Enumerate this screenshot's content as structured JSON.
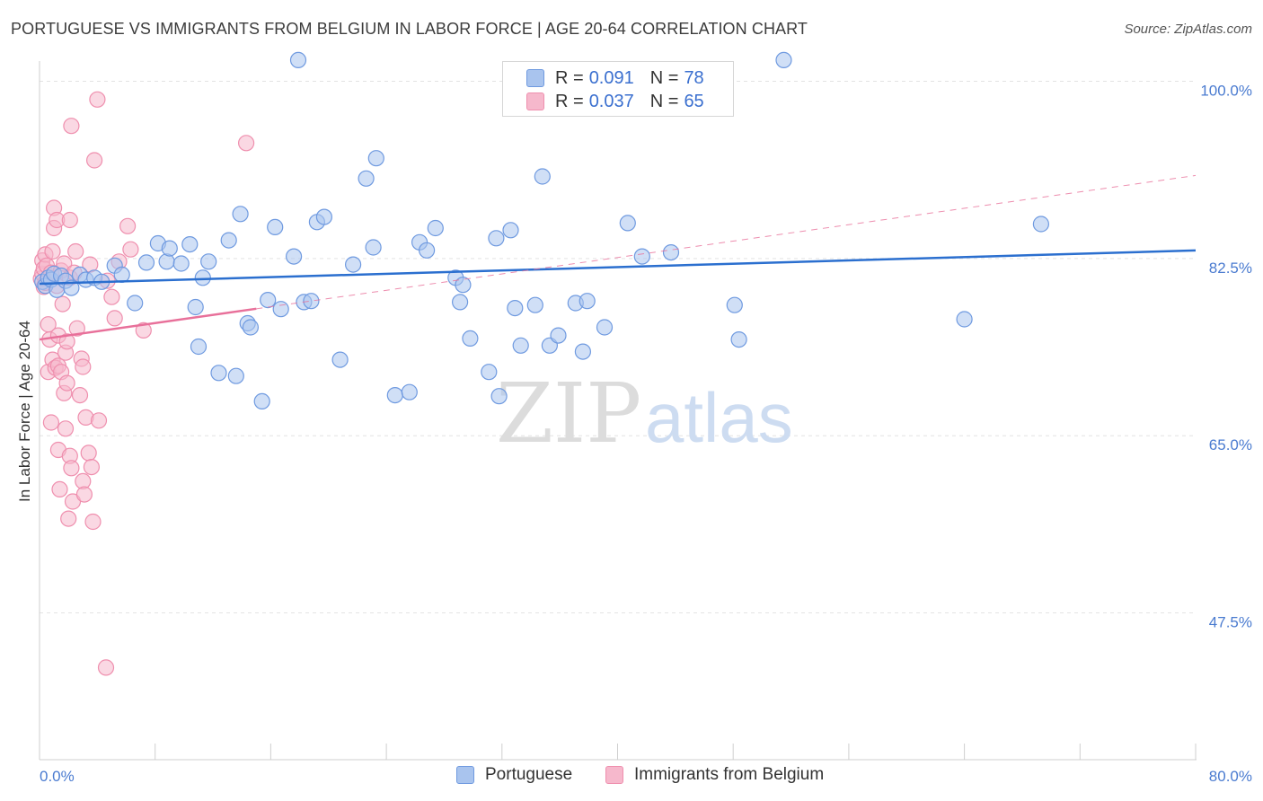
{
  "header": {
    "title": "PORTUGUESE VS IMMIGRANTS FROM BELGIUM IN LABOR FORCE | AGE 20-64 CORRELATION CHART",
    "source": "Source: ZipAtlas.com"
  },
  "watermark": {
    "zip": "ZIP",
    "atlas": "atlas"
  },
  "colors": {
    "blue_fill": "#a9c4ee",
    "blue_stroke": "#6f9ae0",
    "blue_line": "#2b6fcf",
    "pink_fill": "#f6b8cc",
    "pink_stroke": "#ef8fae",
    "pink_line": "#e8709a",
    "tick_label": "#4a7bd0",
    "grid": "#e3e3e3"
  },
  "legend": {
    "series1": {
      "r_label": "R =",
      "r_value": "0.091",
      "n_label": "N =",
      "n_value": "78"
    },
    "series2": {
      "r_label": "R =",
      "r_value": "0.037",
      "n_label": "N =",
      "n_value": "65"
    }
  },
  "chart_data": {
    "type": "scatter",
    "title": "PORTUGUESE VS IMMIGRANTS FROM BELGIUM IN LABOR FORCE | AGE 20-64 CORRELATION CHART",
    "xlabel": "",
    "ylabel": "In Labor Force | Age 20-64",
    "xlim": [
      0,
      80
    ],
    "ylim": [
      33,
      102
    ],
    "x_tick_labels": [
      "0.0%",
      "80.0%"
    ],
    "y_ticks": [
      {
        "value": 100.0,
        "label": "100.0%"
      },
      {
        "value": 82.5,
        "label": "82.5%"
      },
      {
        "value": 65.0,
        "label": "65.0%"
      },
      {
        "value": 47.5,
        "label": "47.5%"
      }
    ],
    "grid": true,
    "legend_position": "top-center",
    "series": [
      {
        "name": "Portuguese",
        "r": 0.091,
        "n": 78,
        "trend": {
          "x": [
            0,
            80
          ],
          "y": [
            80.0,
            83.3
          ]
        },
        "points": [
          [
            0.2,
            80.2
          ],
          [
            0.4,
            79.8
          ],
          [
            0.6,
            80.6
          ],
          [
            0.8,
            80.4
          ],
          [
            1.0,
            81.0
          ],
          [
            1.2,
            79.4
          ],
          [
            1.5,
            80.8
          ],
          [
            1.8,
            80.3
          ],
          [
            2.2,
            79.6
          ],
          [
            2.8,
            80.9
          ],
          [
            3.2,
            80.4
          ],
          [
            3.8,
            80.6
          ],
          [
            4.3,
            80.2
          ],
          [
            5.2,
            81.8
          ],
          [
            5.7,
            80.9
          ],
          [
            6.6,
            78.1
          ],
          [
            7.4,
            82.1
          ],
          [
            8.2,
            84.0
          ],
          [
            8.8,
            82.2
          ],
          [
            9.0,
            83.5
          ],
          [
            9.8,
            82.0
          ],
          [
            10.4,
            83.9
          ],
          [
            10.8,
            77.7
          ],
          [
            11.0,
            73.8
          ],
          [
            11.3,
            80.6
          ],
          [
            11.7,
            82.2
          ],
          [
            12.4,
            71.2
          ],
          [
            13.1,
            84.3
          ],
          [
            13.6,
            70.9
          ],
          [
            13.9,
            86.9
          ],
          [
            14.4,
            76.1
          ],
          [
            14.6,
            75.7
          ],
          [
            15.4,
            68.4
          ],
          [
            15.8,
            78.4
          ],
          [
            16.3,
            85.6
          ],
          [
            16.7,
            77.5
          ],
          [
            17.6,
            82.7
          ],
          [
            17.9,
            102.1
          ],
          [
            18.3,
            78.2
          ],
          [
            18.8,
            78.3
          ],
          [
            19.2,
            86.1
          ],
          [
            19.7,
            86.6
          ],
          [
            20.8,
            72.5
          ],
          [
            21.7,
            81.9
          ],
          [
            22.6,
            90.4
          ],
          [
            23.1,
            83.6
          ],
          [
            23.3,
            92.4
          ],
          [
            24.6,
            69.0
          ],
          [
            25.6,
            69.3
          ],
          [
            26.3,
            84.1
          ],
          [
            26.8,
            83.3
          ],
          [
            27.4,
            85.5
          ],
          [
            28.8,
            80.6
          ],
          [
            29.1,
            78.2
          ],
          [
            29.3,
            79.9
          ],
          [
            29.8,
            74.6
          ],
          [
            31.1,
            71.3
          ],
          [
            31.6,
            84.5
          ],
          [
            31.8,
            68.9
          ],
          [
            32.6,
            85.3
          ],
          [
            32.9,
            77.6
          ],
          [
            33.3,
            73.9
          ],
          [
            34.3,
            77.9
          ],
          [
            34.8,
            90.6
          ],
          [
            35.3,
            73.9
          ],
          [
            35.9,
            74.9
          ],
          [
            37.1,
            78.1
          ],
          [
            37.6,
            73.3
          ],
          [
            37.9,
            78.3
          ],
          [
            39.1,
            75.7
          ],
          [
            40.7,
            86.0
          ],
          [
            41.7,
            82.7
          ],
          [
            43.7,
            83.1
          ],
          [
            48.1,
            77.9
          ],
          [
            48.4,
            74.5
          ],
          [
            51.5,
            102.1
          ],
          [
            64.0,
            76.5
          ],
          [
            69.3,
            85.9
          ]
        ]
      },
      {
        "name": "Immigrants from Belgium",
        "r": 0.037,
        "n": 65,
        "trend": {
          "x": [
            0,
            80
          ],
          "y": [
            74.5,
            90.7
          ]
        },
        "trend_solid_until_x": 15,
        "points": [
          [
            0.1,
            80.5
          ],
          [
            0.2,
            81.0
          ],
          [
            0.2,
            82.3
          ],
          [
            0.3,
            81.5
          ],
          [
            0.3,
            79.7
          ],
          [
            0.4,
            80.1
          ],
          [
            0.4,
            82.9
          ],
          [
            0.5,
            81.8
          ],
          [
            0.6,
            76.0
          ],
          [
            0.6,
            71.3
          ],
          [
            0.7,
            74.5
          ],
          [
            0.8,
            66.3
          ],
          [
            0.8,
            81.1
          ],
          [
            0.9,
            83.2
          ],
          [
            0.9,
            72.5
          ],
          [
            1.0,
            85.5
          ],
          [
            1.0,
            87.5
          ],
          [
            1.1,
            71.7
          ],
          [
            1.2,
            86.3
          ],
          [
            1.2,
            79.8
          ],
          [
            1.3,
            74.9
          ],
          [
            1.3,
            71.9
          ],
          [
            1.3,
            63.6
          ],
          [
            1.4,
            59.7
          ],
          [
            1.5,
            81.3
          ],
          [
            1.5,
            71.3
          ],
          [
            1.6,
            78.0
          ],
          [
            1.7,
            69.2
          ],
          [
            1.7,
            82.0
          ],
          [
            1.8,
            73.2
          ],
          [
            1.8,
            65.7
          ],
          [
            1.9,
            74.3
          ],
          [
            1.9,
            70.2
          ],
          [
            2.0,
            56.8
          ],
          [
            2.1,
            86.3
          ],
          [
            2.1,
            80.6
          ],
          [
            2.1,
            63.0
          ],
          [
            2.2,
            95.6
          ],
          [
            2.2,
            61.8
          ],
          [
            2.3,
            58.5
          ],
          [
            2.4,
            81.1
          ],
          [
            2.5,
            83.2
          ],
          [
            2.6,
            75.6
          ],
          [
            2.8,
            69.0
          ],
          [
            2.9,
            72.6
          ],
          [
            3.0,
            60.5
          ],
          [
            3.0,
            71.8
          ],
          [
            3.1,
            59.2
          ],
          [
            3.2,
            66.8
          ],
          [
            3.4,
            63.3
          ],
          [
            3.5,
            81.9
          ],
          [
            3.6,
            61.9
          ],
          [
            3.7,
            56.5
          ],
          [
            3.8,
            92.2
          ],
          [
            4.0,
            98.2
          ],
          [
            4.1,
            66.5
          ],
          [
            4.6,
            42.1
          ],
          [
            4.7,
            80.3
          ],
          [
            5.0,
            78.7
          ],
          [
            5.2,
            76.6
          ],
          [
            5.5,
            82.2
          ],
          [
            6.1,
            85.7
          ],
          [
            6.3,
            83.4
          ],
          [
            7.2,
            75.4
          ],
          [
            14.3,
            93.9
          ]
        ]
      }
    ]
  },
  "bottom_legend": [
    "Portuguese",
    "Immigrants from Belgium"
  ]
}
